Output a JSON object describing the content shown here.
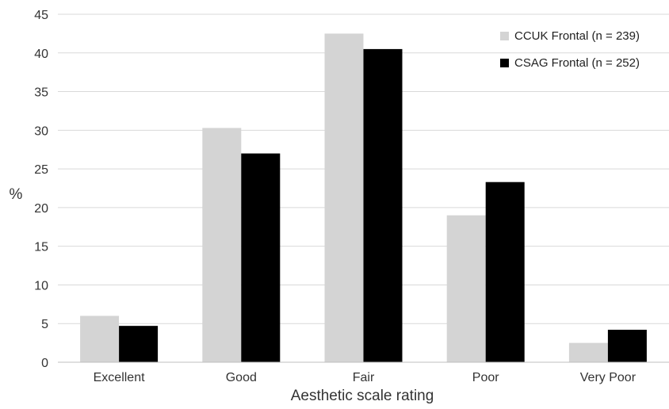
{
  "chart_data": {
    "type": "bar",
    "title": "",
    "xlabel": "Aesthetic scale rating",
    "ylabel": "%",
    "ylim": [
      0,
      45
    ],
    "yticks": [
      0,
      5,
      10,
      15,
      20,
      25,
      30,
      35,
      40,
      45
    ],
    "grid": true,
    "legend_position": "top-right",
    "categories": [
      "Excellent",
      "Good",
      "Fair",
      "Poor",
      "Very Poor"
    ],
    "series": [
      {
        "name": "CCUK Frontal (n = 239)",
        "color": "#d4d4d4",
        "values": [
          6.0,
          30.3,
          42.5,
          19.0,
          2.5
        ]
      },
      {
        "name": "CSAG Frontal (n = 252)",
        "color": "#000000",
        "values": [
          4.7,
          27.0,
          40.5,
          23.3,
          4.2
        ]
      }
    ]
  }
}
